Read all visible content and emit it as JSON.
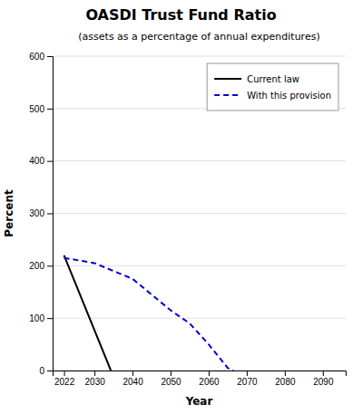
{
  "chart_data": {
    "type": "line",
    "title": "OASDI Trust Fund Ratio",
    "subtitle": "(assets as a percentage of annual expenditures)",
    "xlabel": "Year",
    "ylabel": "Percent",
    "xlim": [
      2019,
      2096
    ],
    "ylim": [
      0,
      600
    ],
    "xticks": [
      2022,
      2030,
      2040,
      2050,
      2060,
      2070,
      2080,
      2090
    ],
    "yticks": [
      0,
      100,
      200,
      300,
      400,
      500,
      600
    ],
    "grid": true,
    "legend": "upper right",
    "series": [
      {
        "name": "Current law",
        "color": "#000000",
        "line_style": "solid",
        "x": [
          2022,
          2034.3
        ],
        "values": [
          220,
          0
        ]
      },
      {
        "name": "With this provision",
        "color": "#0000cc",
        "line_style": "dashed",
        "x": [
          2022,
          2030,
          2040,
          2050,
          2055,
          2060,
          2065,
          2066.5
        ],
        "values": [
          215,
          205,
          175,
          115,
          90,
          50,
          5,
          0
        ]
      }
    ]
  }
}
